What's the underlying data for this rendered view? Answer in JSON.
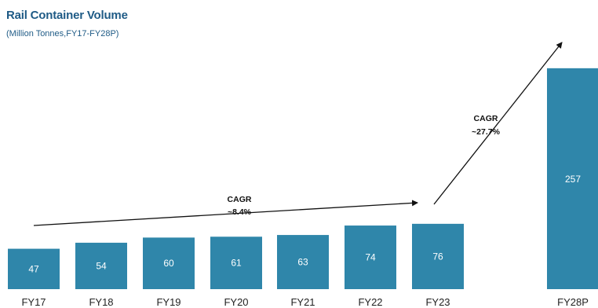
{
  "colors": {
    "title": "#1f5b86",
    "subtitle": "#1f5b86",
    "bar": "#2f86aa",
    "arrow": "#111111"
  },
  "chart_data": {
    "type": "bar",
    "title": "Rail Container Volume",
    "subtitle": "(Million Tonnes,FY17-FY28P)",
    "xlabel": "",
    "ylabel": "",
    "categories": [
      "FY17",
      "FY18",
      "FY19",
      "FY20",
      "FY21",
      "FY22",
      "FY23",
      "FY28P"
    ],
    "values": [
      47,
      54,
      60,
      61,
      63,
      74,
      76,
      257
    ],
    "data_labels": [
      "47",
      "54",
      "60",
      "61",
      "63",
      "74",
      "76",
      "257"
    ],
    "grid": false,
    "legend": "none",
    "annotations": [
      {
        "type": "arrow",
        "label_line1": "CAGR",
        "label_line2": "~8.4%",
        "from": "FY17",
        "to": "FY23"
      },
      {
        "type": "arrow",
        "label_line1": "CAGR",
        "label_line2": "~27.7%",
        "from": "FY23",
        "to": "FY28P"
      }
    ]
  }
}
